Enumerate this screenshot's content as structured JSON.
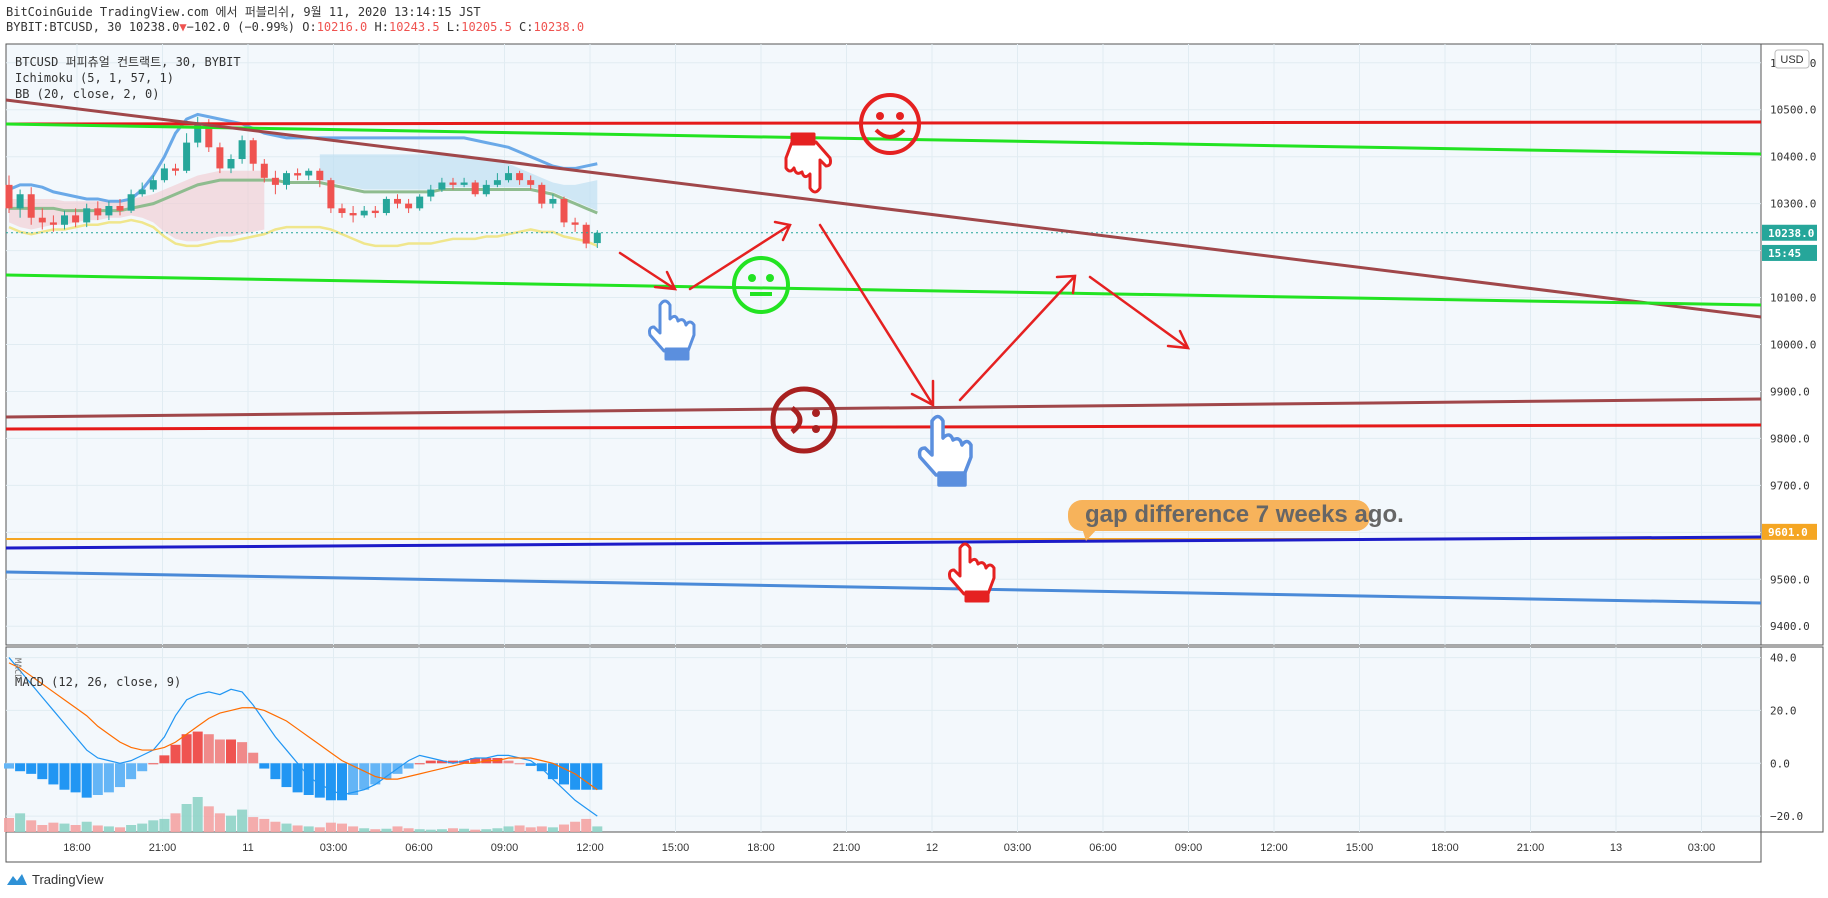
{
  "header": {
    "line1": "BitCoinGuide TradingView.com 에서 퍼블리쉬, 9월 11, 2020 13:14:15 JST",
    "symbol": "BYBIT:BTCUSD, 30",
    "close": "10238.0",
    "change": "−102.0 (−0.99%)",
    "o_label": "O:",
    "o": "10216.0",
    "h_label": "H:",
    "h": "10243.5",
    "l_label": "L:",
    "l": "10205.5",
    "c_label": "C:",
    "c": "10238.0"
  },
  "legend": {
    "title": "BTCUSD 퍼피츄얼 컨트랙트, 30, BYBIT",
    "ichimoku": "Ichimoku (5, 1, 57, 1)",
    "bb": "BB (20, close, 2, 0)",
    "macd": "MACD (12, 26, close, 9)",
    "macd_abbr": "MACD"
  },
  "currency": "USD",
  "annotation": "gap difference 7 weeks ago.",
  "footer": {
    "brand": "TradingView"
  },
  "colors": {
    "up": "#26a69a",
    "down": "#ef5350",
    "red_line": "#e51a1a",
    "green_line": "#22e322",
    "brown_line": "#a0474a",
    "blue_line": "#1c1cc8",
    "lightblue_line": "#4a8ad8",
    "hand_blue": "#5b8fde",
    "hand_red": "#e52121",
    "callout": "#f7b35b",
    "price_tag": "#26a69a"
  },
  "chart_data": {
    "type": "candlestick",
    "price_axis": {
      "ticks": [
        "10600.0",
        "10500.0",
        "10400.0",
        "10300.0",
        "10200.0",
        "10100.0",
        "10000.0",
        "9900.0",
        "9800.0",
        "9700.0",
        "9600.0",
        "9500.0",
        "9400.0"
      ],
      "min": 9360,
      "max": 10640
    },
    "time_axis": {
      "ticks": [
        "18:00",
        "21:00",
        "11",
        "03:00",
        "06:00",
        "09:00",
        "12:00",
        "15:00",
        "18:00",
        "21:00",
        "12",
        "03:00",
        "06:00",
        "09:00",
        "12:00",
        "15:00",
        "18:00",
        "21:00",
        "13",
        "03:00"
      ]
    },
    "price_tags": [
      {
        "label": "10238.0",
        "price": 10238,
        "color": "#26a69a"
      },
      {
        "label": "15:45",
        "price": 10195,
        "color": "#26a69a"
      },
      {
        "label": "9601.0",
        "price": 9601,
        "color": "#f5a623"
      }
    ],
    "last_price": 10238,
    "candles": [
      [
        10340,
        10290,
        10360,
        10280
      ],
      [
        10290,
        10320,
        10330,
        10270
      ],
      [
        10320,
        10270,
        10335,
        10255
      ],
      [
        10270,
        10260,
        10290,
        10245
      ],
      [
        10260,
        10255,
        10275,
        10240
      ],
      [
        10255,
        10275,
        10285,
        10245
      ],
      [
        10275,
        10260,
        10290,
        10250
      ],
      [
        10260,
        10290,
        10300,
        10250
      ],
      [
        10290,
        10275,
        10305,
        10265
      ],
      [
        10275,
        10295,
        10305,
        10265
      ],
      [
        10295,
        10285,
        10310,
        10275
      ],
      [
        10285,
        10320,
        10330,
        10280
      ],
      [
        10320,
        10330,
        10345,
        10315
      ],
      [
        10330,
        10350,
        10360,
        10325
      ],
      [
        10350,
        10375,
        10385,
        10345
      ],
      [
        10375,
        10370,
        10385,
        10360
      ],
      [
        10370,
        10430,
        10450,
        10365
      ],
      [
        10430,
        10470,
        10485,
        10420
      ],
      [
        10470,
        10420,
        10480,
        10410
      ],
      [
        10420,
        10375,
        10430,
        10365
      ],
      [
        10375,
        10395,
        10405,
        10365
      ],
      [
        10395,
        10435,
        10445,
        10385
      ],
      [
        10435,
        10385,
        10440,
        10370
      ],
      [
        10385,
        10355,
        10395,
        10345
      ],
      [
        10355,
        10340,
        10370,
        10320
      ],
      [
        10340,
        10365,
        10370,
        10330
      ],
      [
        10365,
        10360,
        10375,
        10350
      ],
      [
        10360,
        10370,
        10375,
        10350
      ],
      [
        10370,
        10350,
        10375,
        10335
      ],
      [
        10350,
        10290,
        10355,
        10280
      ],
      [
        10290,
        10280,
        10300,
        10270
      ],
      [
        10280,
        10275,
        10295,
        10260
      ],
      [
        10275,
        10285,
        10295,
        10270
      ],
      [
        10285,
        10280,
        10295,
        10270
      ],
      [
        10280,
        10310,
        10315,
        10275
      ],
      [
        10310,
        10300,
        10320,
        10290
      ],
      [
        10300,
        10290,
        10310,
        10280
      ],
      [
        10290,
        10315,
        10320,
        10285
      ],
      [
        10315,
        10330,
        10340,
        10305
      ],
      [
        10330,
        10345,
        10355,
        10325
      ],
      [
        10345,
        10340,
        10355,
        10330
      ],
      [
        10340,
        10345,
        10355,
        10335
      ],
      [
        10345,
        10320,
        10350,
        10315
      ],
      [
        10320,
        10340,
        10350,
        10315
      ],
      [
        10340,
        10350,
        10365,
        10335
      ],
      [
        10350,
        10365,
        10380,
        10345
      ],
      [
        10365,
        10350,
        10370,
        10340
      ],
      [
        10350,
        10340,
        10360,
        10330
      ],
      [
        10340,
        10300,
        10345,
        10290
      ],
      [
        10300,
        10310,
        10320,
        10290
      ],
      [
        10310,
        10260,
        10315,
        10250
      ],
      [
        10260,
        10255,
        10270,
        10240
      ],
      [
        10255,
        10215,
        10260,
        10205
      ],
      [
        10216,
        10238,
        10243.5,
        10205.5
      ]
    ],
    "bb_upper": [
      10330,
      10340,
      10340,
      10335,
      10325,
      10320,
      10315,
      10310,
      10310,
      10305,
      10305,
      10310,
      10330,
      10360,
      10400,
      10450,
      10480,
      10490,
      10485,
      10480,
      10475,
      10470,
      10460,
      10450,
      10445,
      10440,
      10440,
      10440,
      10440,
      10440,
      10440,
      10440,
      10440,
      10440,
      10440,
      10440,
      10440,
      10440,
      10440,
      10440,
      10440,
      10440,
      10435,
      10430,
      10425,
      10420,
      10410,
      10400,
      10390,
      10380,
      10375,
      10375,
      10380,
      10385
    ],
    "bb_mid": [
      10290,
      10290,
      10290,
      10290,
      10290,
      10285,
      10285,
      10285,
      10285,
      10285,
      10285,
      10290,
      10295,
      10300,
      10310,
      10320,
      10330,
      10340,
      10345,
      10350,
      10350,
      10350,
      10350,
      10350,
      10350,
      10345,
      10345,
      10345,
      10345,
      10340,
      10335,
      10330,
      10325,
      10325,
      10325,
      10325,
      10325,
      10325,
      10325,
      10330,
      10330,
      10330,
      10330,
      10330,
      10330,
      10330,
      10330,
      10330,
      10325,
      10320,
      10310,
      10300,
      10290,
      10280
    ],
    "bb_lower": [
      10250,
      10240,
      10235,
      10240,
      10245,
      10245,
      10250,
      10255,
      10255,
      10260,
      10260,
      10265,
      10260,
      10250,
      10230,
      10215,
      10210,
      10210,
      10215,
      10220,
      10220,
      10225,
      10230,
      10235,
      10245,
      10250,
      10250,
      10250,
      10250,
      10245,
      10235,
      10225,
      10215,
      10210,
      10210,
      10210,
      10215,
      10215,
      10215,
      10220,
      10225,
      10225,
      10225,
      10230,
      10230,
      10235,
      10240,
      10245,
      10240,
      10240,
      10230,
      10225,
      10220,
      10210
    ],
    "macd": [
      40,
      35,
      30,
      25,
      20,
      15,
      10,
      5,
      2,
      1,
      0,
      1,
      3,
      5,
      10,
      18,
      24,
      26,
      27,
      26,
      28,
      27,
      22,
      16,
      10,
      5,
      0,
      -5,
      -8,
      -10,
      -12,
      -11,
      -10,
      -8,
      -5,
      -2,
      1,
      3,
      2,
      1,
      0,
      1,
      2,
      2,
      3,
      3,
      2,
      1,
      -2,
      -6,
      -10,
      -14,
      -17,
      -20
    ],
    "signal": [
      38,
      36,
      33,
      30,
      27,
      24,
      21,
      18,
      14,
      11,
      8,
      6,
      5,
      5,
      6,
      8,
      11,
      14,
      17,
      19,
      20,
      21,
      21,
      20,
      18,
      16,
      13,
      10,
      7,
      4,
      1,
      -1,
      -3,
      -5,
      -6,
      -6,
      -5,
      -4,
      -3,
      -2,
      -1,
      0,
      0,
      1,
      1,
      2,
      2,
      2,
      1,
      0,
      -2,
      -4,
      -7,
      -10
    ],
    "histogram": [
      -2,
      -3,
      -4,
      -6,
      -8,
      -10,
      -11,
      -13,
      -12,
      -11,
      -9,
      -6,
      -3,
      0,
      3,
      7,
      11,
      12,
      11,
      9,
      9,
      8,
      4,
      -2,
      -6,
      -9,
      -11,
      -12,
      -13,
      -14,
      -14,
      -12,
      -10,
      -8,
      -6,
      -4,
      -2,
      0,
      1,
      1,
      1,
      1,
      2,
      2,
      2,
      1,
      0,
      -1,
      -3,
      -6,
      -8,
      -10,
      -10,
      -10
    ],
    "volume": [
      30,
      40,
      25,
      15,
      20,
      18,
      15,
      22,
      14,
      12,
      10,
      15,
      18,
      25,
      28,
      40,
      60,
      75,
      55,
      40,
      35,
      48,
      32,
      28,
      22,
      18,
      14,
      12,
      10,
      20,
      18,
      12,
      8,
      6,
      7,
      12,
      8,
      6,
      5,
      6,
      8,
      7,
      5,
      6,
      8,
      12,
      14,
      10,
      12,
      10,
      16,
      22,
      28,
      12
    ],
    "macd_axis": {
      "ticks": [
        "40.0",
        "20.0",
        "0.0",
        "−20.0"
      ],
      "min": -26,
      "max": 44
    }
  }
}
